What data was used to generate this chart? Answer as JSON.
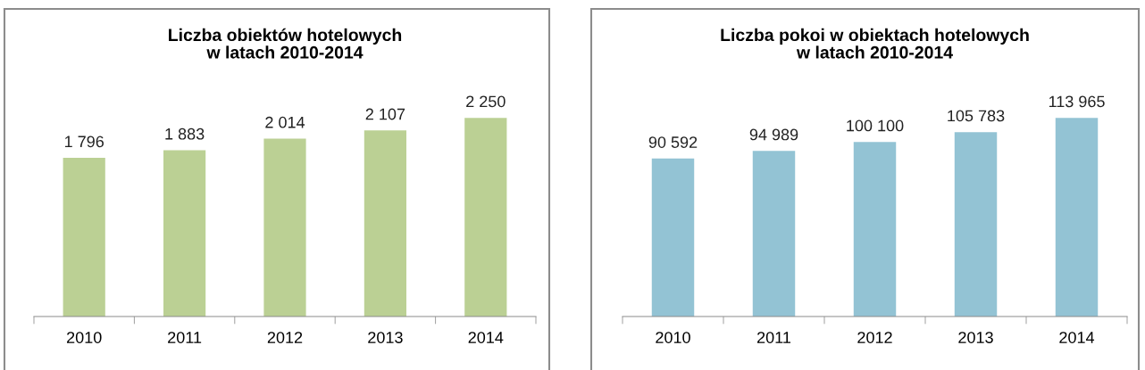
{
  "chart_data": [
    {
      "type": "bar",
      "title": "Liczba obiektów hotelowych\nw latach 2010-2014",
      "categories": [
        "2010",
        "2011",
        "2012",
        "2013",
        "2014"
      ],
      "values": [
        1796,
        1883,
        2014,
        2107,
        2250
      ],
      "value_labels": [
        "1 796",
        "1 883",
        "2 014",
        "2 107",
        "2 250"
      ],
      "color": "#bbd094",
      "tick_labels": "x",
      "grid": false
    },
    {
      "type": "bar",
      "title": "Liczba pokoi w obiektach hotelowych\nw latach 2010-2014",
      "categories": [
        "2010",
        "2011",
        "2012",
        "2013",
        "2014"
      ],
      "values": [
        90592,
        94989,
        100100,
        105783,
        113965
      ],
      "value_labels": [
        "90 592",
        "94 989",
        "100 100",
        "105 783",
        "113 965"
      ],
      "color": "#93c3d4",
      "tick_labels": "x",
      "grid": false
    }
  ]
}
